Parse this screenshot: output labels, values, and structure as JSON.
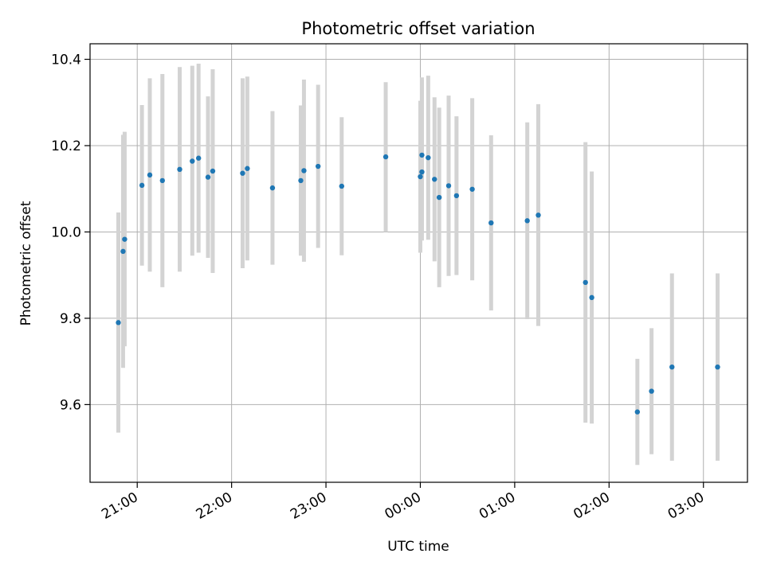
{
  "chart_data": {
    "type": "scatter",
    "title": "Photometric offset variation",
    "xlabel": "UTC time",
    "ylabel": "Photometric offset",
    "grid": true,
    "x_unit": "UTC time (HH:MM, after 20:00 on day 1)",
    "xlim": [
      "20:30",
      "03:28"
    ],
    "ylim": [
      9.42,
      10.436
    ],
    "x_ticks": [
      "21:00",
      "22:00",
      "23:00",
      "00:00",
      "01:00",
      "02:00",
      "03:00"
    ],
    "y_ticks": [
      "9.6",
      "9.8",
      "10.0",
      "10.2",
      "10.4"
    ],
    "colors": {
      "point": "#1f77b4",
      "errorbar": "#d3d3d3",
      "grid": "#b0b0b0"
    },
    "points": [
      {
        "time": "20:48",
        "y": 9.79,
        "low": 9.535,
        "high": 10.045
      },
      {
        "time": "20:51",
        "y": 9.955,
        "low": 9.685,
        "high": 10.225
      },
      {
        "time": "20:52",
        "y": 9.983,
        "low": 9.735,
        "high": 10.232
      },
      {
        "time": "21:03",
        "y": 10.108,
        "low": 9.922,
        "high": 10.294
      },
      {
        "time": "21:08",
        "y": 10.132,
        "low": 9.908,
        "high": 10.356
      },
      {
        "time": "21:16",
        "y": 10.119,
        "low": 9.872,
        "high": 10.366
      },
      {
        "time": "21:27",
        "y": 10.145,
        "low": 9.908,
        "high": 10.382
      },
      {
        "time": "21:35",
        "y": 10.164,
        "low": 9.945,
        "high": 10.385
      },
      {
        "time": "21:39",
        "y": 10.171,
        "low": 9.952,
        "high": 10.39
      },
      {
        "time": "21:45",
        "y": 10.127,
        "low": 9.94,
        "high": 10.314
      },
      {
        "time": "21:48",
        "y": 10.141,
        "low": 9.905,
        "high": 10.377
      },
      {
        "time": "22:07",
        "y": 10.136,
        "low": 9.916,
        "high": 10.356
      },
      {
        "time": "22:10",
        "y": 10.147,
        "low": 9.934,
        "high": 10.36
      },
      {
        "time": "22:26",
        "y": 10.102,
        "low": 9.924,
        "high": 10.28
      },
      {
        "time": "22:44",
        "y": 10.119,
        "low": 9.945,
        "high": 10.293
      },
      {
        "time": "22:46",
        "y": 10.142,
        "low": 9.931,
        "high": 10.353
      },
      {
        "time": "22:55",
        "y": 10.152,
        "low": 9.963,
        "high": 10.341
      },
      {
        "time": "23:10",
        "y": 10.106,
        "low": 9.946,
        "high": 10.266
      },
      {
        "time": "23:38",
        "y": 10.174,
        "low": 10.0,
        "high": 10.347
      },
      {
        "time": "00:00",
        "y": 10.128,
        "low": 9.952,
        "high": 10.304
      },
      {
        "time": "00:01",
        "y": 10.139,
        "low": 9.98,
        "high": 10.352
      },
      {
        "time": "00:01",
        "y": 10.178,
        "low": 9.998,
        "high": 10.358
      },
      {
        "time": "00:05",
        "y": 10.172,
        "low": 9.982,
        "high": 10.362
      },
      {
        "time": "00:09",
        "y": 10.122,
        "low": 9.932,
        "high": 10.312
      },
      {
        "time": "00:12",
        "y": 10.08,
        "low": 9.872,
        "high": 10.288
      },
      {
        "time": "00:18",
        "y": 10.107,
        "low": 9.898,
        "high": 10.316
      },
      {
        "time": "00:23",
        "y": 10.084,
        "low": 9.9,
        "high": 10.268
      },
      {
        "time": "00:33",
        "y": 10.099,
        "low": 9.888,
        "high": 10.31
      },
      {
        "time": "00:45",
        "y": 10.021,
        "low": 9.818,
        "high": 10.224
      },
      {
        "time": "01:08",
        "y": 10.026,
        "low": 9.798,
        "high": 10.254
      },
      {
        "time": "01:15",
        "y": 10.039,
        "low": 9.782,
        "high": 10.296
      },
      {
        "time": "01:45",
        "y": 9.883,
        "low": 9.558,
        "high": 10.208
      },
      {
        "time": "01:49",
        "y": 9.848,
        "low": 9.556,
        "high": 10.14
      },
      {
        "time": "02:18",
        "y": 9.583,
        "low": 9.46,
        "high": 9.706
      },
      {
        "time": "02:27",
        "y": 9.631,
        "low": 9.485,
        "high": 9.777
      },
      {
        "time": "02:40",
        "y": 9.687,
        "low": 9.47,
        "high": 9.904
      },
      {
        "time": "03:09",
        "y": 9.687,
        "low": 9.47,
        "high": 9.904
      }
    ]
  }
}
